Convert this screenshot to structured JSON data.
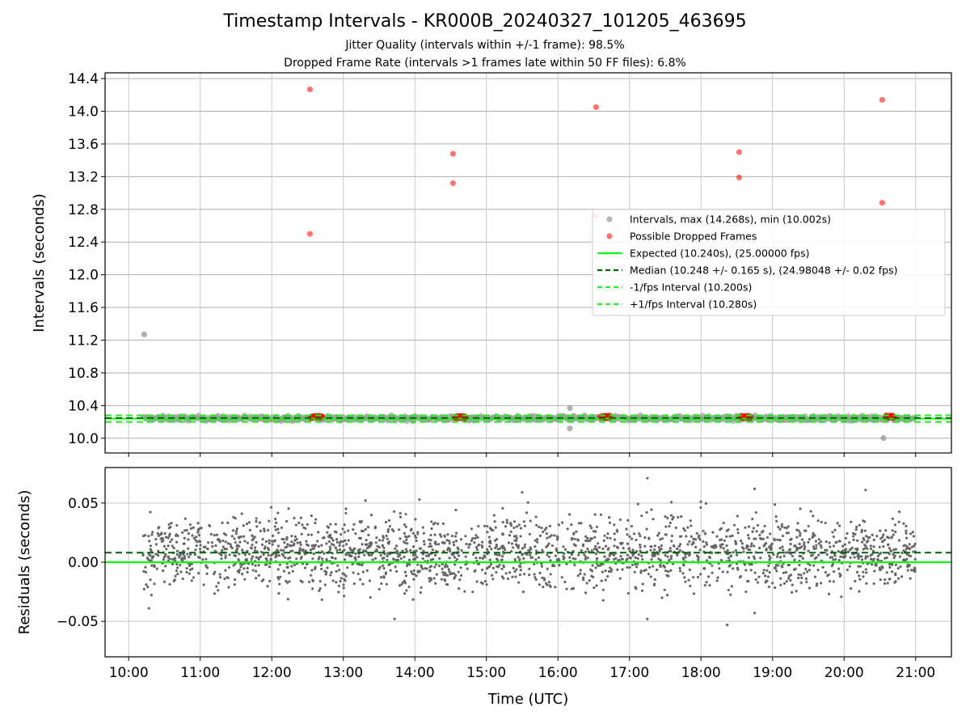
{
  "title": "Timestamp Intervals - KR000B_20240327_101205_463695",
  "subtitle_1": "Jitter Quality (intervals within +/-1 frame): 98.5%",
  "subtitle_2": "Dropped Frame Rate (intervals >1 frames late within 50 FF files): 6.8%",
  "colors": {
    "intervals": "#9e9e9e",
    "dropped": "#ff0000",
    "expected": "#00ff00",
    "median": "#006400",
    "fps_bounds": "#22ee22",
    "residuals": "#666666"
  },
  "chart_data": [
    {
      "type": "scatter",
      "ylabel": "Intervals (seconds)",
      "ylim": [
        9.82,
        14.47
      ],
      "yticks": [
        "10.0",
        "10.4",
        "10.8",
        "11.2",
        "11.6",
        "12.0",
        "12.4",
        "12.8",
        "13.2",
        "13.6",
        "14.0",
        "14.4"
      ],
      "ytick_values": [
        10.0,
        10.4,
        10.8,
        11.2,
        11.6,
        12.0,
        12.4,
        12.8,
        13.2,
        13.6,
        14.0,
        14.4
      ],
      "xlim_hours": [
        9.67,
        21.5
      ],
      "grid": true,
      "legend_position": "right",
      "legend": [
        {
          "label": "Intervals, max (14.268s), min (10.002s)",
          "kind": "marker",
          "color": "#9e9e9e"
        },
        {
          "label": "Possible Dropped Frames",
          "kind": "marker",
          "color": "#ff4444"
        },
        {
          "label": "Expected (10.240s), (25.00000 fps)",
          "kind": "line",
          "color": "#00ff00",
          "dash": ""
        },
        {
          "label": "Median (10.248 +/- 0.165 s), (24.98048 +/- 0.02 fps)",
          "kind": "line",
          "color": "#006400",
          "dash": "6,4"
        },
        {
          "label": "-1/fps Interval (10.200s)",
          "kind": "line",
          "color": "#22ee22",
          "dash": "6,4"
        },
        {
          "label": "+1/fps Interval (10.280s)",
          "kind": "line",
          "color": "#22ee22",
          "dash": "6,4"
        }
      ],
      "reference_lines": {
        "expected": 10.24,
        "median": 10.248,
        "minus_fps": 10.2,
        "plus_fps": 10.28
      },
      "intervals_band": {
        "x_start": "10:12",
        "x_end": "21:00",
        "center": 10.245,
        "spread": 0.03
      },
      "interval_outliers": [
        {
          "x": "10:13",
          "y": 11.27
        },
        {
          "x": "16:10",
          "y": 10.37
        },
        {
          "x": "16:10",
          "y": 10.12
        },
        {
          "x": "20:33",
          "y": 10.002
        }
      ],
      "dropped_frames": [
        {
          "x": "12:32",
          "y": 14.268
        },
        {
          "x": "12:32",
          "y": 12.5
        },
        {
          "x": "14:32",
          "y": 13.48
        },
        {
          "x": "14:32",
          "y": 13.12
        },
        {
          "x": "16:32",
          "y": 14.05
        },
        {
          "x": "16:32",
          "y": 12.72
        },
        {
          "x": "18:32",
          "y": 13.5
        },
        {
          "x": "18:32",
          "y": 13.19
        },
        {
          "x": "20:32",
          "y": 14.14
        },
        {
          "x": "20:32",
          "y": 12.88
        }
      ],
      "dropped_clusters": [
        {
          "x_start": "12:33",
          "x_end": "12:42",
          "y": 10.26
        },
        {
          "x_start": "14:33",
          "x_end": "14:42",
          "y": 10.26
        },
        {
          "x_start": "16:35",
          "x_end": "16:44",
          "y": 10.26
        },
        {
          "x_start": "18:33",
          "x_end": "18:42",
          "y": 10.26
        },
        {
          "x_start": "20:35",
          "x_end": "20:42",
          "y": 10.265
        }
      ]
    },
    {
      "type": "scatter",
      "xlabel": "Time (UTC)",
      "ylabel": "Residuals (seconds)",
      "ylim": [
        -0.08,
        0.08
      ],
      "yticks": [
        "−0.05",
        "0.00",
        "0.05"
      ],
      "ytick_values": [
        -0.05,
        0.0,
        0.05
      ],
      "xticks": [
        "10:00",
        "11:00",
        "12:00",
        "13:00",
        "14:00",
        "15:00",
        "16:00",
        "17:00",
        "18:00",
        "19:00",
        "20:00",
        "21:00"
      ],
      "grid": true,
      "reference_lines": {
        "zero": 0.0,
        "median_offset": 0.008
      },
      "residuals_band": {
        "x_start": "10:12",
        "x_end": "21:00",
        "center": 0.008,
        "spread": 0.015
      },
      "residual_outliers": [
        {
          "x": "17:15",
          "y": 0.071
        },
        {
          "x": "18:45",
          "y": 0.062
        },
        {
          "x": "20:18",
          "y": 0.061
        },
        {
          "x": "15:30",
          "y": 0.059
        },
        {
          "x": "13:43",
          "y": -0.048
        },
        {
          "x": "17:15",
          "y": -0.048
        },
        {
          "x": "18:22",
          "y": -0.053
        },
        {
          "x": "10:17",
          "y": -0.039
        },
        {
          "x": "18:45",
          "y": -0.043
        }
      ]
    }
  ]
}
